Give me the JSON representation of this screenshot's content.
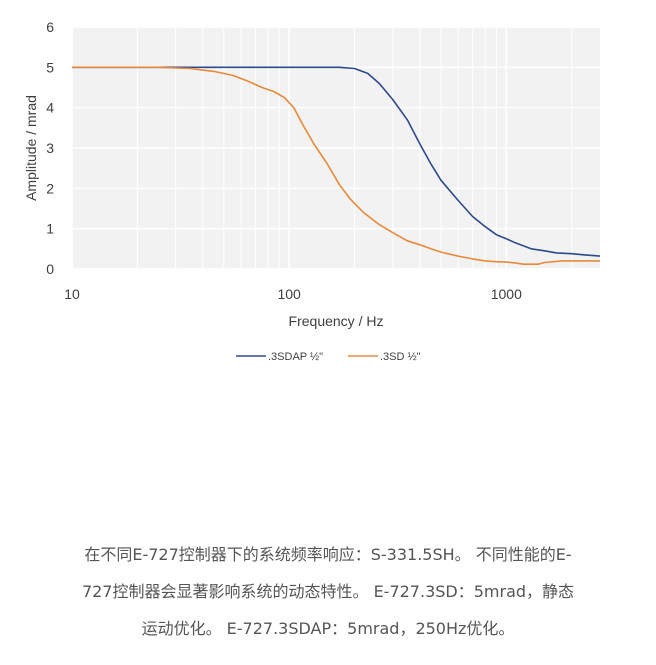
{
  "chart_data": {
    "type": "line",
    "xscale": "log",
    "xlabel": "Frequency / Hz",
    "ylabel": "Amplitude / mrad",
    "xlim": [
      10,
      2700
    ],
    "ylim": [
      0,
      6
    ],
    "x_ticks": [
      10,
      100,
      1000
    ],
    "x_tick_labels": [
      "10",
      "100",
      "1000"
    ],
    "y_ticks": [
      0,
      1,
      2,
      3,
      4,
      5,
      6
    ],
    "y_tick_labels": [
      "0",
      "1",
      "2",
      "3",
      "4",
      "5",
      "6"
    ],
    "grid": true,
    "legend_position": "bottom",
    "series": [
      {
        "name": ".3SDAP ½\"",
        "color": "#2e4a8c",
        "points": [
          [
            10,
            5
          ],
          [
            30,
            5
          ],
          [
            100,
            5
          ],
          [
            170,
            5
          ],
          [
            200,
            4.97
          ],
          [
            230,
            4.85
          ],
          [
            260,
            4.6
          ],
          [
            300,
            4.2
          ],
          [
            350,
            3.7
          ],
          [
            400,
            3.1
          ],
          [
            450,
            2.6
          ],
          [
            500,
            2.2
          ],
          [
            600,
            1.7
          ],
          [
            700,
            1.3
          ],
          [
            800,
            1.05
          ],
          [
            900,
            0.85
          ],
          [
            1000,
            0.75
          ],
          [
            1100,
            0.65
          ],
          [
            1300,
            0.5
          ],
          [
            1500,
            0.45
          ],
          [
            1700,
            0.4
          ],
          [
            2000,
            0.38
          ],
          [
            2300,
            0.35
          ],
          [
            2700,
            0.32
          ]
        ]
      },
      {
        "name": ".3SD ½\"",
        "color": "#e8893a",
        "points": [
          [
            10,
            5
          ],
          [
            25,
            5
          ],
          [
            35,
            4.97
          ],
          [
            45,
            4.9
          ],
          [
            55,
            4.8
          ],
          [
            65,
            4.65
          ],
          [
            75,
            4.5
          ],
          [
            85,
            4.4
          ],
          [
            95,
            4.25
          ],
          [
            105,
            4.0
          ],
          [
            115,
            3.6
          ],
          [
            130,
            3.1
          ],
          [
            150,
            2.6
          ],
          [
            170,
            2.1
          ],
          [
            190,
            1.75
          ],
          [
            220,
            1.4
          ],
          [
            260,
            1.1
          ],
          [
            300,
            0.9
          ],
          [
            350,
            0.7
          ],
          [
            400,
            0.6
          ],
          [
            450,
            0.5
          ],
          [
            500,
            0.42
          ],
          [
            600,
            0.32
          ],
          [
            700,
            0.25
          ],
          [
            800,
            0.2
          ],
          [
            900,
            0.18
          ],
          [
            1000,
            0.17
          ],
          [
            1100,
            0.15
          ],
          [
            1200,
            0.12
          ],
          [
            1400,
            0.12
          ],
          [
            1500,
            0.16
          ],
          [
            1800,
            0.2
          ],
          [
            2200,
            0.2
          ],
          [
            2700,
            0.2
          ]
        ]
      }
    ]
  },
  "caption": {
    "lines": [
      "在不同E-727控制器下的系统频率响应：S-331.5SH。 不同性能的E-",
      "727控制器会显著影响系统的动态特性。 E-727.3SD：5mrad，静态",
      "运动优化。 E-727.3SDAP：5mrad，250Hz优化。"
    ]
  }
}
